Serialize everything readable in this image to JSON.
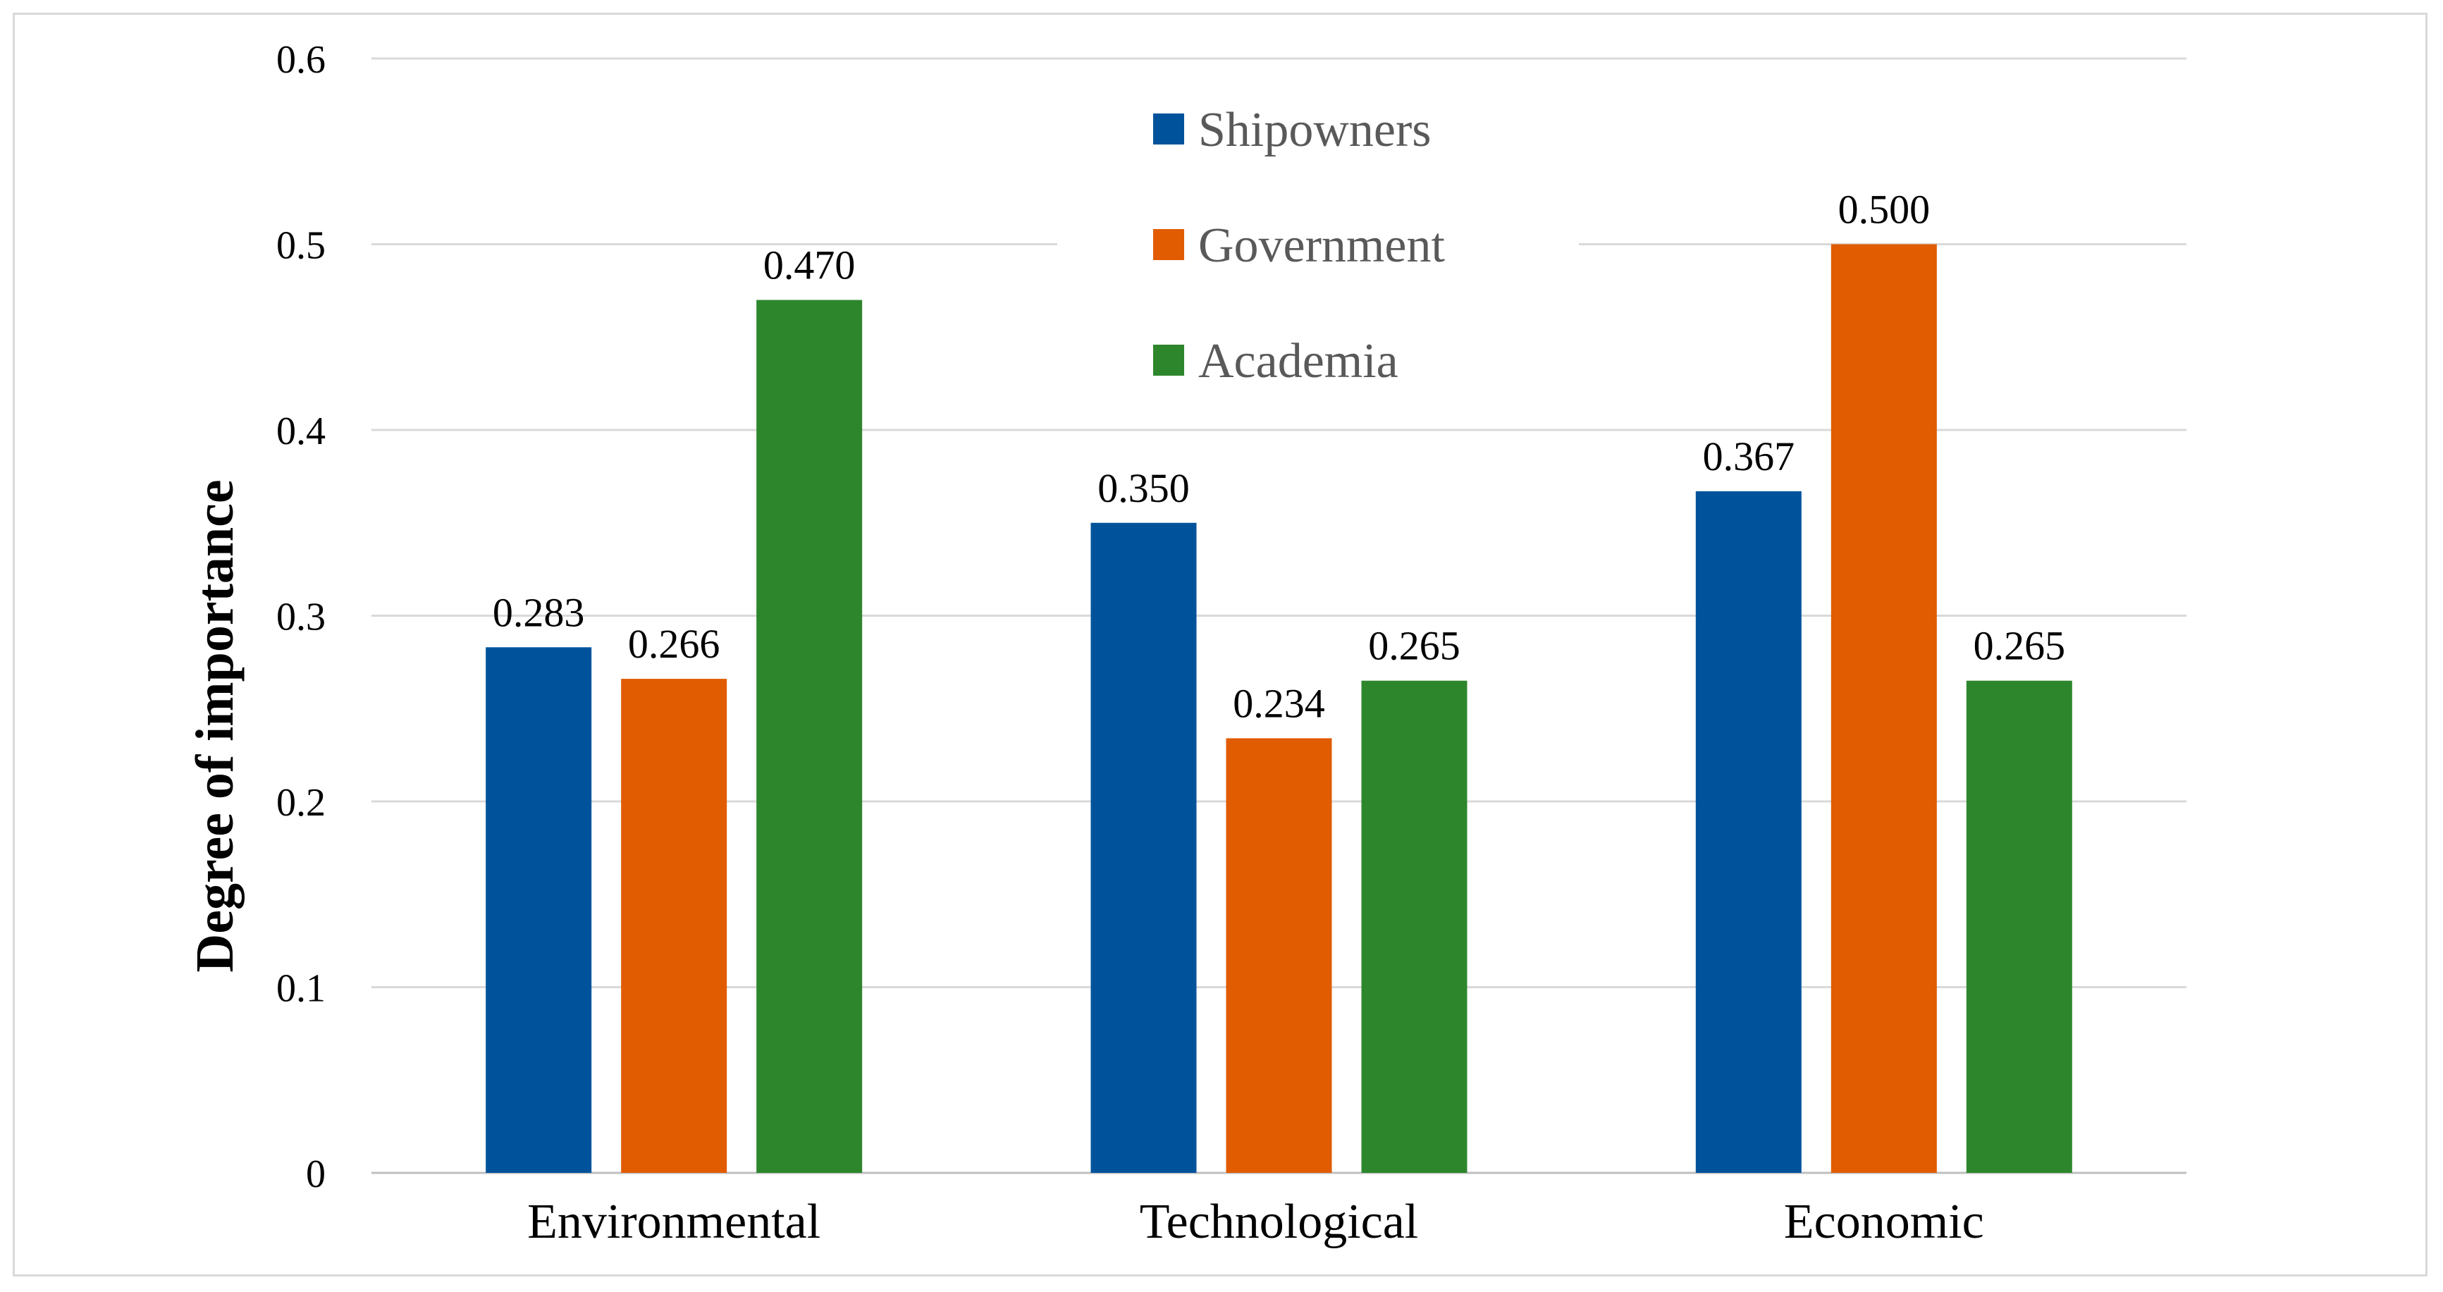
{
  "chart_data": {
    "type": "bar",
    "categories": [
      "Environmental",
      "Technological",
      "Economic"
    ],
    "series": [
      {
        "name": "Shipowners",
        "values": [
          0.283,
          0.35,
          0.367
        ],
        "labels": [
          "0.283",
          "0.350",
          "0.367"
        ],
        "color": "#00539b"
      },
      {
        "name": "Government",
        "values": [
          0.266,
          0.234,
          0.5
        ],
        "labels": [
          "0.266",
          "0.234",
          "0.500"
        ],
        "color": "#e15b00"
      },
      {
        "name": "Academia",
        "values": [
          0.47,
          0.265,
          0.265
        ],
        "labels": [
          "0.470",
          "0.265",
          "0.265"
        ],
        "color": "#2e862c"
      }
    ],
    "ylabel": "Degree of importance",
    "xlabel": "",
    "ylim": [
      0,
      0.6
    ],
    "yticks": [
      0,
      0.1,
      0.2,
      0.3,
      0.4,
      0.5,
      0.6
    ],
    "ytick_labels": [
      "0",
      "0.1",
      "0.2",
      "0.3",
      "0.4",
      "0.5",
      "0.6"
    ],
    "grid": true,
    "legend_position": "top-center"
  }
}
